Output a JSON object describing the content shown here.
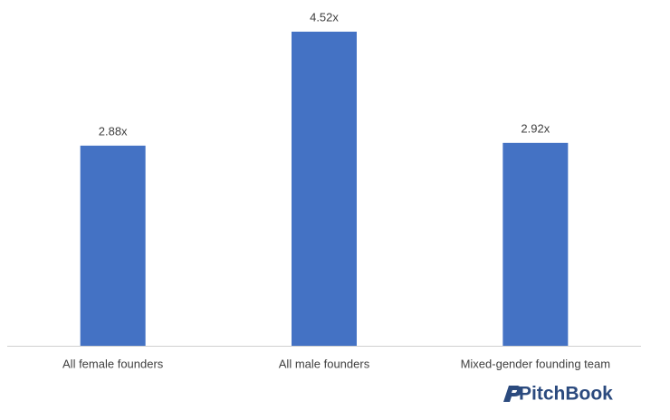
{
  "chart_data": {
    "type": "bar",
    "categories": [
      "All female founders",
      "All male founders",
      "Mixed-gender founding team"
    ],
    "values": [
      2.88,
      4.52,
      2.92
    ],
    "value_labels": [
      "2.88x",
      "4.52x",
      "2.92x"
    ],
    "color": "#4472c4",
    "source": "PitchBook"
  }
}
